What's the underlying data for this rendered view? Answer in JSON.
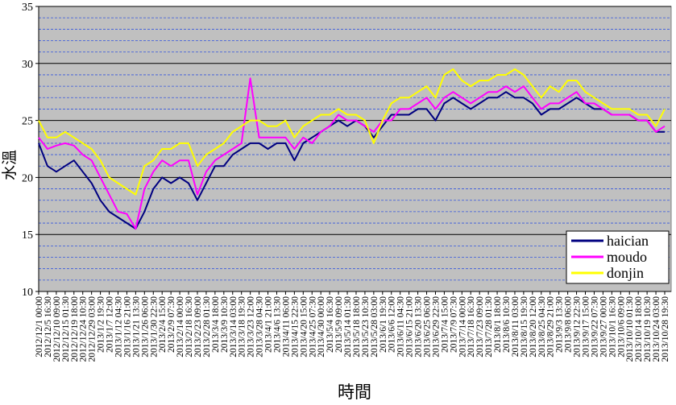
{
  "chart_data": {
    "type": "line",
    "y_axis_label": "水溫",
    "x_axis_label": "時間",
    "categories": [
      "2012/12/1 00:00",
      "2012/12/5 16:30",
      "2012/12/10 09:00",
      "2012/12/15 01:30",
      "2012/12/19 18:00",
      "2012/12/24 10:30",
      "2012/12/29 03:00",
      "2013/1/2 19:30",
      "2013/1/7 12:00",
      "2013/1/12 04:30",
      "2013/1/16 21:00",
      "2013/1/21 13:30",
      "2013/1/26 06:00",
      "2013/1/30 22:30",
      "2013/2/4 15:00",
      "2013/2/9 07:30",
      "2013/2/14 00:00",
      "2013/2/18 16:30",
      "2013/2/23 09:00",
      "2013/2/28 01:30",
      "2013/3/4 18:00",
      "2013/3/9 10:30",
      "2013/3/14 03:00",
      "2013/3/18 19:30",
      "2013/3/23 12:00",
      "2013/3/28 04:30",
      "2013/4/1 21:00",
      "2013/4/6 13:30",
      "2013/4/11 06:00",
      "2013/4/15 22:30",
      "2013/4/20 15:00",
      "2013/4/25 07:30",
      "2013/4/30 00:00",
      "2013/5/4 16:30",
      "2013/5/9 09:00",
      "2013/5/14 01:30",
      "2013/5/18 18:00",
      "2013/5/23 10:30",
      "2013/5/28 03:00",
      "2013/6/1 19:30",
      "2013/6/6 12:00",
      "2013/6/11 04:30",
      "2013/6/15 21:00",
      "2013/6/20 13:30",
      "2013/6/25 06:00",
      "2013/6/29 22:30",
      "2013/7/4 15:00",
      "2013/7/9 07:30",
      "2013/7/14 00:00",
      "2013/7/18 16:30",
      "2013/7/23 09:00",
      "2013/7/28 01:30",
      "2013/8/1 18:00",
      "2013/8/6 10:30",
      "2013/8/11 03:00",
      "2013/8/15 19:30",
      "2013/8/20 12:00",
      "2013/8/25 04:30",
      "2013/8/29 21:00",
      "2013/9/3 13:30",
      "2013/9/8 06:00",
      "2013/9/12 22:30",
      "2013/9/17 15:00",
      "2013/9/22 07:30",
      "2013/9/27 00:00",
      "2013/10/1 16:30",
      "2013/10/6 09:00",
      "2013/10/10 01:30",
      "2013/10/14 18:00",
      "2013/10/19 10:30",
      "2013/10/24 03:00",
      "2013/10/28 19:30"
    ],
    "series": [
      {
        "name": "haician",
        "color": "#000080",
        "values": [
          23,
          21,
          20.5,
          21,
          21.5,
          20.5,
          19.5,
          18,
          17,
          16.5,
          16,
          15.5,
          17,
          19,
          20,
          19.5,
          20,
          19.5,
          18,
          19.5,
          21,
          21,
          22,
          22.5,
          23,
          23,
          22.5,
          23,
          23,
          21.5,
          23,
          23.5,
          24,
          24.5,
          25,
          24.5,
          25,
          24.5,
          23.5,
          24.5,
          25.5,
          25.5,
          25.5,
          26,
          26,
          25,
          26.5,
          27,
          26.5,
          26,
          26.5,
          27,
          27,
          27.5,
          27,
          27,
          26.5,
          25.5,
          26,
          26,
          26.5,
          27,
          26.5,
          26,
          26,
          25.5,
          25.5,
          25.5,
          25,
          25,
          24,
          24
        ]
      },
      {
        "name": "moudo",
        "color": "#ff00ff",
        "values": [
          23.5,
          22.5,
          22.8,
          23,
          22.8,
          22,
          21.5,
          20,
          18.5,
          17,
          16.8,
          15.5,
          19,
          20.5,
          21.5,
          21,
          21.5,
          21.5,
          18.5,
          20.5,
          21.5,
          22,
          22.5,
          23,
          28.7,
          23.5,
          23.5,
          23.5,
          23.5,
          22.5,
          23.5,
          23,
          24,
          24.5,
          25.5,
          25,
          25,
          24.5,
          24,
          25,
          25,
          26,
          26,
          26.5,
          27,
          26,
          27,
          27.5,
          27,
          26.5,
          27,
          27.5,
          27.5,
          28,
          27.5,
          28,
          27,
          26,
          26.5,
          26.5,
          27,
          27.5,
          26.5,
          26.5,
          26,
          25.5,
          25.5,
          25.5,
          25,
          25,
          24,
          24.5
        ]
      },
      {
        "name": "donjin",
        "color": "#ffff00",
        "values": [
          25,
          23.5,
          23.5,
          24,
          23.5,
          23,
          22.5,
          21.5,
          20,
          19.5,
          19,
          18.5,
          21,
          21.5,
          22.5,
          22.5,
          23,
          23,
          21,
          22,
          22.5,
          23,
          24,
          24.5,
          25,
          25,
          24.5,
          24.5,
          25,
          23.5,
          24.5,
          25,
          25.5,
          25.5,
          26,
          25.5,
          25.5,
          25,
          23,
          25,
          26.5,
          27,
          27,
          27.5,
          28,
          27,
          29,
          29.5,
          28.5,
          28,
          28.5,
          28.5,
          29,
          29,
          29.5,
          29,
          28,
          27,
          28,
          27.5,
          28.5,
          28.5,
          27.5,
          27,
          26.5,
          26,
          26,
          26,
          25.5,
          25.5,
          24.5,
          26
        ]
      }
    ],
    "ylim": [
      10,
      35
    ],
    "yticks": [
      10,
      15,
      20,
      25,
      30,
      35
    ],
    "grid": true,
    "legend": "bottom-right"
  }
}
